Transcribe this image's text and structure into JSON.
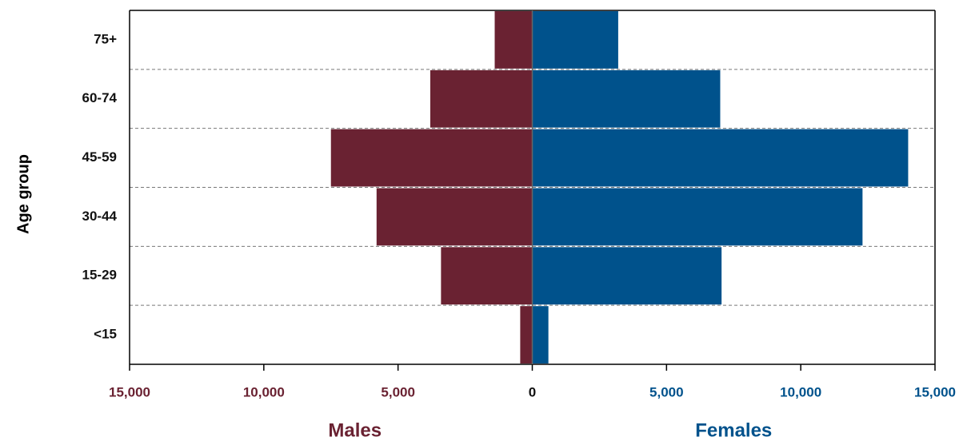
{
  "chart_data": {
    "type": "pyramid",
    "categories": [
      "<15",
      "15-29",
      "30-44",
      "45-59",
      "60-74",
      "75+"
    ],
    "series": [
      {
        "name": "Males",
        "color": "#6a2232",
        "side": "left",
        "values": [
          450,
          3400,
          5800,
          7500,
          3800,
          1400
        ]
      },
      {
        "name": "Females",
        "color": "#00528c",
        "side": "right",
        "values": [
          600,
          7050,
          12300,
          14000,
          7000,
          3200
        ]
      }
    ],
    "ylabel": "Age group",
    "xlim": [
      -15000,
      15000
    ],
    "xticks": [
      {
        "value": -15000,
        "label": "15,000"
      },
      {
        "value": -10000,
        "label": "10,000"
      },
      {
        "value": -5000,
        "label": "5,000"
      },
      0,
      {
        "value": 5000,
        "label": "5,000"
      },
      {
        "value": 10000,
        "label": "10,000"
      },
      {
        "value": 15000,
        "label": "15,000"
      }
    ]
  }
}
